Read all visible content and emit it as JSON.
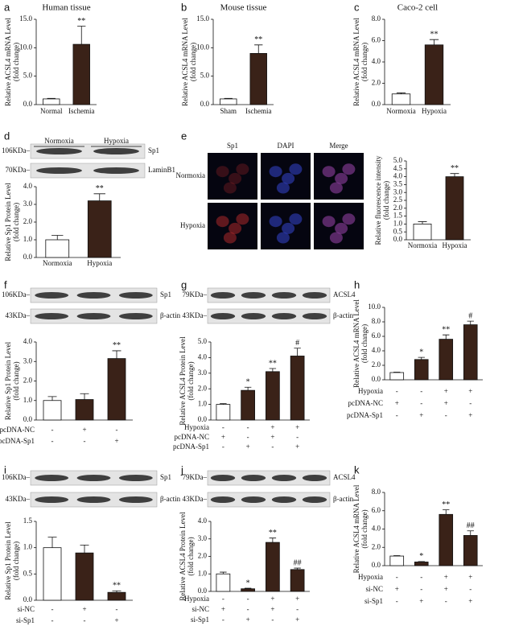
{
  "chart_data": [
    {
      "type": "bar",
      "panel": "a",
      "title": "Human tissue",
      "ylabel": [
        "Relative ACSL4 mRNA Level",
        "(fold change)"
      ],
      "categories": [
        "Normal",
        "Ischemia"
      ],
      "values": [
        1.0,
        10.6
      ],
      "errors": [
        0.1,
        3.2
      ],
      "significance": [
        null,
        "**"
      ],
      "ylim": [
        0,
        15
      ],
      "yticks": [
        {
          "value": 0,
          "label": "0.0"
        },
        {
          "value": 5,
          "label": "5.0"
        },
        {
          "value": 10,
          "label": "10.0"
        },
        {
          "value": 15,
          "label": "15.0"
        }
      ]
    },
    {
      "type": "bar",
      "panel": "b",
      "title": "Mouse tissue",
      "ylabel": [
        "Relative ACSL4 mRNA Level",
        "(fold change)"
      ],
      "categories": [
        "Sham",
        "Ischemia"
      ],
      "values": [
        1.0,
        9.0
      ],
      "errors": [
        0.1,
        1.5
      ],
      "significance": [
        null,
        "**"
      ],
      "ylim": [
        0,
        15
      ],
      "yticks": [
        {
          "value": 0,
          "label": "0.0"
        },
        {
          "value": 5,
          "label": "5.0"
        },
        {
          "value": 10,
          "label": "10.0"
        },
        {
          "value": 15,
          "label": "15.0"
        }
      ]
    },
    {
      "type": "bar",
      "panel": "c",
      "title": "Caco-2 cell",
      "ylabel": [
        "Relative ACSL4 mRNA Level",
        "(fold change)"
      ],
      "categories": [
        "Normoxia",
        "Hypoxia"
      ],
      "values": [
        1.0,
        5.6
      ],
      "errors": [
        0.1,
        0.5
      ],
      "significance": [
        null,
        "**"
      ],
      "ylim": [
        0,
        8
      ],
      "yticks": [
        {
          "value": 0,
          "label": "0.0"
        },
        {
          "value": 2,
          "label": "2.0"
        },
        {
          "value": 4,
          "label": "4.0"
        },
        {
          "value": 6,
          "label": "6.0"
        },
        {
          "value": 8,
          "label": "8.0"
        }
      ]
    },
    {
      "type": "bar",
      "panel": "d",
      "ylabel": [
        "Relative Sp1 Protein Level",
        "(fold change)"
      ],
      "blot": {
        "headers": [
          "Normoxia",
          "Hypoxia"
        ],
        "rows": [
          {
            "size": "106KDa–",
            "protein": "Sp1"
          },
          {
            "size": "70KDa–",
            "protein": "LaminB1"
          }
        ]
      },
      "categories": [
        "Normoxia",
        "Hypoxia"
      ],
      "values": [
        1.0,
        3.2
      ],
      "errors": [
        0.25,
        0.4
      ],
      "significance": [
        null,
        "**"
      ],
      "ylim": [
        0,
        4
      ],
      "yticks": [
        {
          "value": 0,
          "label": "0.0"
        },
        {
          "value": 1,
          "label": "1.0"
        },
        {
          "value": 2,
          "label": "2.0"
        },
        {
          "value": 3,
          "label": "3.0"
        },
        {
          "value": 4,
          "label": "4.0"
        }
      ]
    },
    {
      "type": "bar",
      "panel": "e",
      "ylabel": [
        "Relative fluorescence intensity",
        "(fold change)"
      ],
      "images": {
        "columns": [
          "Sp1",
          "DAPI",
          "Merge"
        ],
        "rows": [
          "Normoxia",
          "Hypoxia"
        ]
      },
      "categories": [
        "Normoxia",
        "Hypoxia"
      ],
      "values": [
        1.0,
        4.0
      ],
      "errors": [
        0.15,
        0.2
      ],
      "significance": [
        null,
        "**"
      ],
      "ylim": [
        0,
        5
      ],
      "yticks": [
        {
          "value": 0,
          "label": "0.0"
        },
        {
          "value": 0.5,
          "label": "0.5"
        },
        {
          "value": 1,
          "label": "1.0"
        },
        {
          "value": 1.5,
          "label": "1.5"
        },
        {
          "value": 2,
          "label": "2.0"
        },
        {
          "value": 2.5,
          "label": "2.5"
        },
        {
          "value": 3,
          "label": "3.0"
        },
        {
          "value": 3.5,
          "label": "3.5"
        },
        {
          "value": 4,
          "label": "4.0"
        },
        {
          "value": 4.5,
          "label": "4.5"
        },
        {
          "value": 5,
          "label": "5.0"
        }
      ]
    },
    {
      "type": "bar",
      "panel": "f",
      "ylabel": [
        "Relative Sp1 Protein Level",
        "(fold change)"
      ],
      "blot": {
        "rows": [
          {
            "size": "106KDa–",
            "protein": "Sp1"
          },
          {
            "size": "43KDa–",
            "protein": "β-actin"
          }
        ]
      },
      "conditions": [
        {
          "name": "pcDNA-NC",
          "values": [
            "-",
            "+",
            "-"
          ]
        },
        {
          "name": "pcDNA-Sp1",
          "values": [
            "-",
            "-",
            "+"
          ]
        }
      ],
      "values": [
        1.0,
        1.05,
        3.15
      ],
      "errors": [
        0.2,
        0.3,
        0.4
      ],
      "significance": [
        null,
        null,
        "**"
      ],
      "ylim": [
        0,
        4
      ],
      "yticks": [
        {
          "value": 0,
          "label": "0.0"
        },
        {
          "value": 1,
          "label": "1.0"
        },
        {
          "value": 2,
          "label": "2.0"
        },
        {
          "value": 3,
          "label": "3.0"
        },
        {
          "value": 4,
          "label": "4.0"
        }
      ]
    },
    {
      "type": "bar",
      "panel": "g",
      "ylabel": [
        "Relative ACSL4 Protein Level",
        "(fold change)"
      ],
      "blot": {
        "rows": [
          {
            "size": "79KDa–",
            "protein": "ACSL4"
          },
          {
            "size": "43KDa–",
            "protein": "β-actin"
          }
        ]
      },
      "conditions": [
        {
          "name": "Hypoxia",
          "values": [
            "-",
            "-",
            "+",
            "+"
          ]
        },
        {
          "name": "pcDNA-NC",
          "values": [
            "+",
            "-",
            "+",
            "-"
          ]
        },
        {
          "name": "pcDNA-Sp1",
          "values": [
            "-",
            "+",
            "-",
            "+"
          ]
        }
      ],
      "values": [
        1.0,
        1.9,
        3.1,
        4.1
      ],
      "errors": [
        0.05,
        0.2,
        0.2,
        0.5
      ],
      "significance": [
        null,
        "*",
        "**",
        "#"
      ],
      "ylim": [
        0,
        5
      ],
      "yticks": [
        {
          "value": 0,
          "label": "0.0"
        },
        {
          "value": 1,
          "label": "1.0"
        },
        {
          "value": 2,
          "label": "2.0"
        },
        {
          "value": 3,
          "label": "3.0"
        },
        {
          "value": 4,
          "label": "4.0"
        },
        {
          "value": 5,
          "label": "5.0"
        }
      ]
    },
    {
      "type": "bar",
      "panel": "h",
      "ylabel": [
        "Relative ACSL4 mRNA Level",
        "(fold change)"
      ],
      "conditions": [
        {
          "name": "Hypoxia",
          "values": [
            "-",
            "-",
            "+",
            "+"
          ]
        },
        {
          "name": "pcDNA-NC",
          "values": [
            "+",
            "-",
            "+",
            "-"
          ]
        },
        {
          "name": "pcDNA-Sp1",
          "values": [
            "-",
            "+",
            "-",
            "+"
          ]
        }
      ],
      "values": [
        1.0,
        2.8,
        5.6,
        7.6
      ],
      "errors": [
        0.05,
        0.3,
        0.6,
        0.5
      ],
      "significance": [
        null,
        "*",
        "**",
        "#"
      ],
      "ylim": [
        0,
        10
      ],
      "yticks": [
        {
          "value": 0,
          "label": "0.0"
        },
        {
          "value": 2,
          "label": "2.0"
        },
        {
          "value": 4,
          "label": "4.0"
        },
        {
          "value": 6,
          "label": "6.0"
        },
        {
          "value": 8,
          "label": "8.0"
        },
        {
          "value": 10,
          "label": "10.0"
        }
      ]
    },
    {
      "type": "bar",
      "panel": "i",
      "ylabel": [
        "Relative Sp1 Protein Level",
        "(fold change)"
      ],
      "blot": {
        "rows": [
          {
            "size": "106KDa–",
            "protein": "Sp1"
          },
          {
            "size": "43KDa–",
            "protein": "β-actin"
          }
        ]
      },
      "conditions": [
        {
          "name": "si-NC",
          "values": [
            "-",
            "+",
            "-"
          ]
        },
        {
          "name": "si-Sp1",
          "values": [
            "-",
            "-",
            "+"
          ]
        }
      ],
      "values": [
        1.0,
        0.9,
        0.15
      ],
      "errors": [
        0.2,
        0.15,
        0.03
      ],
      "significance": [
        null,
        null,
        "**"
      ],
      "ylim": [
        0,
        1.5
      ],
      "yticks": [
        {
          "value": 0,
          "label": "0.0"
        },
        {
          "value": 0.5,
          "label": "0.5"
        },
        {
          "value": 1,
          "label": "1.0"
        },
        {
          "value": 1.5,
          "label": "1.5"
        }
      ]
    },
    {
      "type": "bar",
      "panel": "j",
      "ylabel": [
        "Relative ACSL4 Protein Level",
        "(fold change)"
      ],
      "blot": {
        "rows": [
          {
            "size": "79KDa–",
            "protein": "ACSL4"
          },
          {
            "size": "43KDa–",
            "protein": "β-actin"
          }
        ]
      },
      "conditions": [
        {
          "name": "Hypoxia",
          "values": [
            "-",
            "-",
            "+",
            "+"
          ]
        },
        {
          "name": "si-NC",
          "values": [
            "+",
            "-",
            "+",
            "-"
          ]
        },
        {
          "name": "si-Sp1",
          "values": [
            "-",
            "+",
            "-",
            "+"
          ]
        }
      ],
      "values": [
        1.0,
        0.15,
        2.8,
        1.25
      ],
      "errors": [
        0.1,
        0.03,
        0.25,
        0.08
      ],
      "significance": [
        null,
        "*",
        "**",
        "##"
      ],
      "ylim": [
        0,
        4
      ],
      "yticks": [
        {
          "value": 0,
          "label": "0.0"
        },
        {
          "value": 1,
          "label": "1.0"
        },
        {
          "value": 2,
          "label": "2.0"
        },
        {
          "value": 3,
          "label": "3.0"
        },
        {
          "value": 4,
          "label": "4.0"
        }
      ]
    },
    {
      "type": "bar",
      "panel": "k",
      "ylabel": [
        "Relative ACSL4 mRNA Level",
        "(fold change)"
      ],
      "conditions": [
        {
          "name": "Hypoxia",
          "values": [
            "-",
            "-",
            "+",
            "+"
          ]
        },
        {
          "name": "si-NC",
          "values": [
            "+",
            "-",
            "+",
            "-"
          ]
        },
        {
          "name": "si-Sp1",
          "values": [
            "-",
            "+",
            "-",
            "+"
          ]
        }
      ],
      "values": [
        1.05,
        0.4,
        5.6,
        3.3
      ],
      "errors": [
        0.05,
        0.05,
        0.5,
        0.5
      ],
      "significance": [
        null,
        "*",
        "**",
        "##"
      ],
      "ylim": [
        0,
        8
      ],
      "yticks": [
        {
          "value": 0,
          "label": "0.0"
        },
        {
          "value": 2,
          "label": "2.0"
        },
        {
          "value": 4,
          "label": "4.0"
        },
        {
          "value": 6,
          "label": "6.0"
        },
        {
          "value": 8,
          "label": "8.0"
        }
      ]
    }
  ]
}
